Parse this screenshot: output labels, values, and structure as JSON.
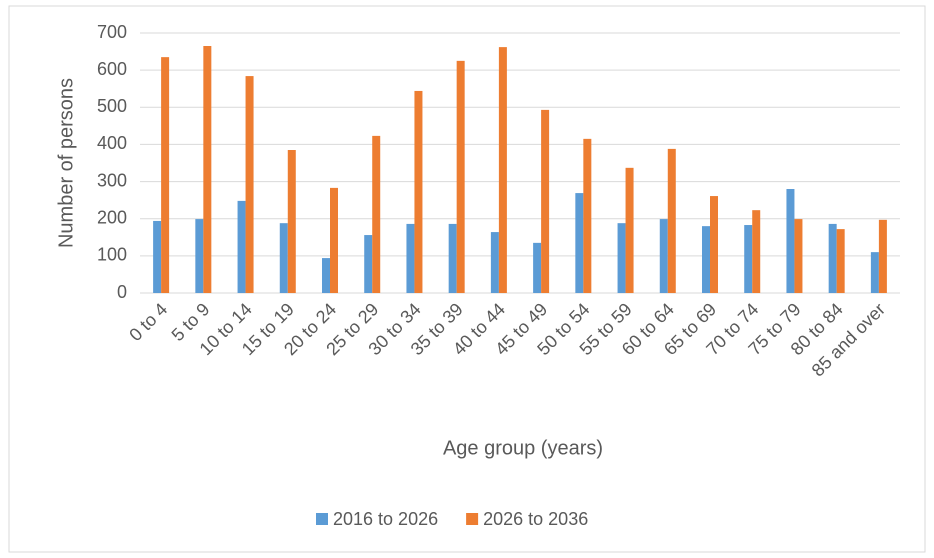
{
  "chart_data": {
    "type": "bar",
    "x_label": "Age group (years)",
    "y_label": "Number of persons",
    "categories": [
      "0 to 4",
      "5 to 9",
      "10 to 14",
      "15 to 19",
      "20 to 24",
      "25 to 29",
      "30 to 34",
      "35 to 39",
      "40 to 44",
      "45 to 49",
      "50 to 54",
      "55 to 59",
      "60 to 64",
      "65 to 69",
      "70 to 74",
      "75 to 79",
      "80 to 84",
      "85 and over"
    ],
    "series": [
      {
        "name": "2016 to 2026",
        "color": "#5b9bd5",
        "values": [
          194,
          199,
          248,
          188,
          94,
          156,
          186,
          186,
          164,
          135,
          269,
          188,
          199,
          180,
          183,
          280,
          186,
          110
        ]
      },
      {
        "name": "2026 to 2036",
        "color": "#ed7d31",
        "values": [
          635,
          665,
          584,
          385,
          283,
          423,
          544,
          625,
          662,
          493,
          415,
          337,
          388,
          261,
          223,
          199,
          172,
          197
        ]
      }
    ],
    "ylim": [
      0,
      700
    ],
    "yticks": [
      0,
      100,
      200,
      300,
      400,
      500,
      600,
      700
    ],
    "grid": true,
    "legend": "bottom"
  }
}
